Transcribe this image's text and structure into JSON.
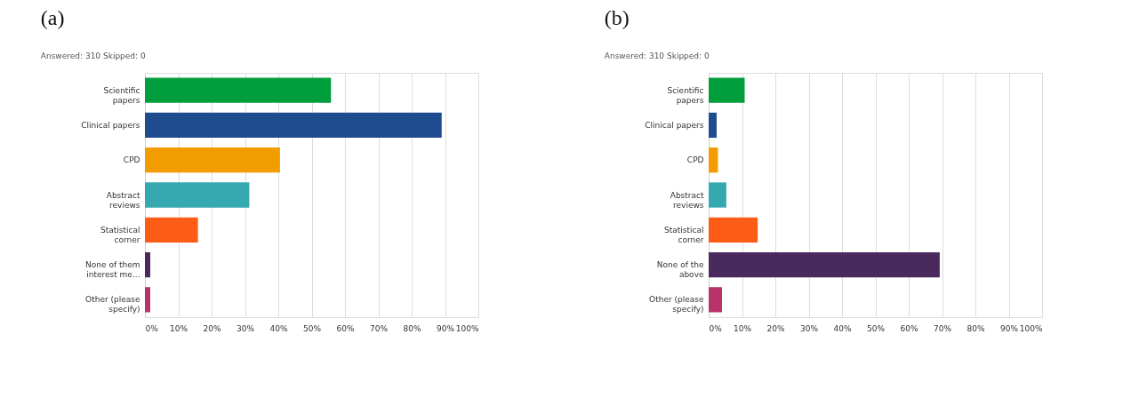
{
  "chart_data": [
    {
      "type": "bar",
      "orientation": "horizontal",
      "title": "(a)",
      "subtitle": "Answered: 310    Skipped: 0",
      "categories": [
        "Scientific papers",
        "Clinical papers",
        "CPD",
        "Abstract reviews",
        "Statistical corner",
        "None of them interest me...",
        "Other (please specify)"
      ],
      "values": [
        55.8,
        89.0,
        40.5,
        31.3,
        15.9,
        1.6,
        1.6
      ],
      "colors": [
        "#009e3d",
        "#1f4b8f",
        "#f19c00",
        "#36a8b0",
        "#fc5c16",
        "#4a2a5e",
        "#b8336a"
      ],
      "xlim": [
        0,
        100
      ],
      "xticks": [
        {
          "value": 0,
          "label": "0%"
        },
        {
          "value": 10,
          "label": "10%"
        },
        {
          "value": 20,
          "label": "20%"
        },
        {
          "value": 30,
          "label": "30%"
        },
        {
          "value": 40,
          "label": "40%"
        },
        {
          "value": 50,
          "label": "50%"
        },
        {
          "value": 60,
          "label": "60%"
        },
        {
          "value": 70,
          "label": "70%"
        },
        {
          "value": 80,
          "label": "80%"
        },
        {
          "value": 90,
          "label": "90%"
        },
        {
          "value": 100,
          "label": "100%"
        }
      ],
      "grid": "x"
    },
    {
      "type": "bar",
      "orientation": "horizontal",
      "title": "(b)",
      "subtitle": "Answered: 310    Skipped: 0",
      "categories": [
        "Scientific papers",
        "Clinical papers",
        "CPD",
        "Abstract reviews",
        "Statistical corner",
        "None of the above",
        "Other (please specify)"
      ],
      "values": [
        10.8,
        2.4,
        2.8,
        5.3,
        14.7,
        69.3,
        4.0
      ],
      "colors": [
        "#009e3d",
        "#1f4b8f",
        "#f19c00",
        "#36a8b0",
        "#fc5c16",
        "#4a2a5e",
        "#b8336a"
      ],
      "xlim": [
        0,
        100
      ],
      "xticks": [
        {
          "value": 0,
          "label": "0%"
        },
        {
          "value": 10,
          "label": "10%"
        },
        {
          "value": 20,
          "label": "20%"
        },
        {
          "value": 30,
          "label": "30%"
        },
        {
          "value": 40,
          "label": "40%"
        },
        {
          "value": 50,
          "label": "50%"
        },
        {
          "value": 60,
          "label": "60%"
        },
        {
          "value": 70,
          "label": "70%"
        },
        {
          "value": 80,
          "label": "80%"
        },
        {
          "value": 90,
          "label": "90%"
        },
        {
          "value": 100,
          "label": "100%"
        }
      ],
      "grid": "x"
    }
  ]
}
